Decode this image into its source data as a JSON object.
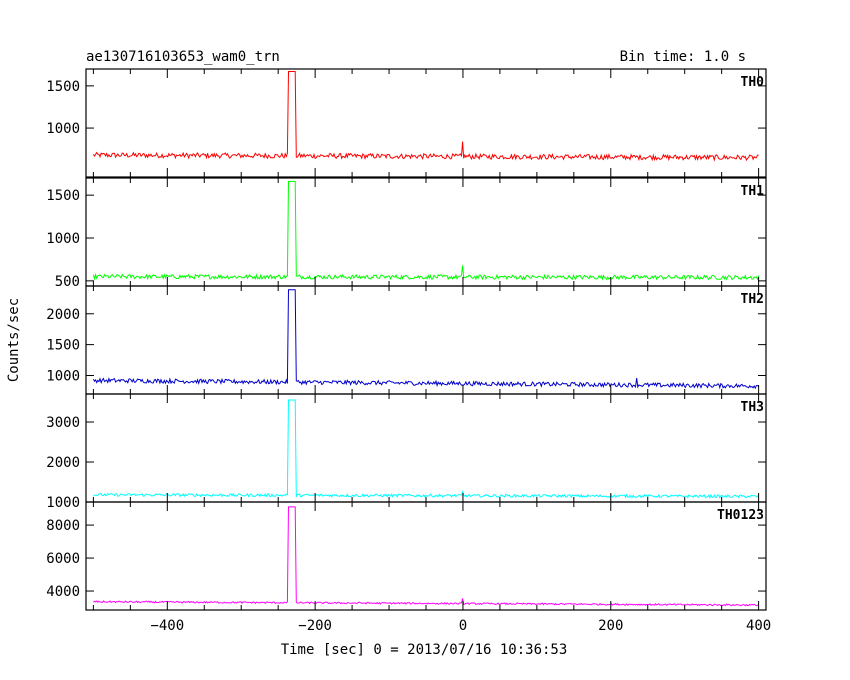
{
  "chart_data": {
    "type": "line",
    "title": "ae130716103653_wam0_trn",
    "subtitle": "Bin time: 1.0 s",
    "xlabel": "Time [sec] 0 = 2013/07/16 10:36:53",
    "ylabel": "Counts/sec",
    "xlim": [
      -510,
      410
    ],
    "x_ticks": [
      -400,
      -200,
      0,
      200,
      400
    ],
    "x_tick_labels": [
      "−400",
      "−200",
      "0",
      "200",
      "400"
    ],
    "grid": false,
    "panels": [
      {
        "name": "TH0",
        "color": "#ff0000",
        "ylim": [
          420,
          1700
        ],
        "y_ticks": [
          1000,
          1500
        ],
        "baseline_left": 680,
        "baseline_right": 650,
        "noise": 30,
        "pulse": {
          "start": -237,
          "end": -226,
          "peak": 1670
        },
        "spike": {
          "x": 0,
          "value": 840
        }
      },
      {
        "name": "TH1",
        "color": "#00ff00",
        "ylim": [
          440,
          1700
        ],
        "y_ticks": [
          500,
          1000,
          1500
        ],
        "baseline_left": 550,
        "baseline_right": 540,
        "noise": 25,
        "pulse": {
          "start": -237,
          "end": -226,
          "peak": 1660
        },
        "spike": {
          "x": 0,
          "value": 680
        }
      },
      {
        "name": "TH2",
        "color": "#0000cc",
        "ylim": [
          700,
          2450
        ],
        "y_ticks": [
          1000,
          1500,
          2000
        ],
        "baseline_left": 920,
        "baseline_right": 830,
        "noise": 35,
        "pulse": {
          "start": -237,
          "end": -226,
          "peak": 2390
        },
        "spike": {
          "x": 235,
          "value": 960
        }
      },
      {
        "name": "TH3",
        "color": "#00ffff",
        "ylim": [
          1000,
          3700
        ],
        "y_ticks": [
          1000,
          2000,
          3000
        ],
        "baseline_left": 1180,
        "baseline_right": 1140,
        "noise": 35,
        "pulse": {
          "start": -237,
          "end": -226,
          "peak": 3550
        },
        "spike": {
          "x": 0,
          "value": 1260
        }
      },
      {
        "name": "TH0123",
        "color": "#ff00ff",
        "ylim": [
          2850,
          9400
        ],
        "y_ticks": [
          4000,
          6000,
          8000
        ],
        "baseline_left": 3350,
        "baseline_right": 3150,
        "noise": 50,
        "pulse": {
          "start": -237,
          "end": -226,
          "peak": 9100
        },
        "spike": {
          "x": 0,
          "value": 3550
        }
      }
    ]
  }
}
